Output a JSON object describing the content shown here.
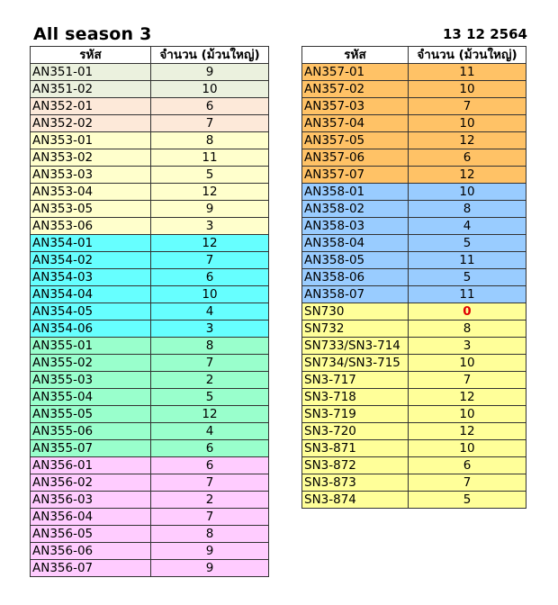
{
  "title": "All season 3",
  "date": "13 12 2564",
  "headers": {
    "code": "รหัส",
    "qty": "จำนวน (ม้วนใหญ่)"
  },
  "colors": {
    "an351": "#ebf1de",
    "an352": "#fde9d9",
    "an353": "#ffffcc",
    "an354": "#66ffff",
    "an355": "#99ffcc",
    "an356": "#ffccff",
    "an357": "#ffc266",
    "an358": "#99ccff",
    "sn": "#ffff99",
    "zero": "#e00000"
  },
  "left_table": [
    {
      "code": "AN351-01",
      "qty": "9",
      "color": "#ebf1de"
    },
    {
      "code": "AN351-02",
      "qty": "10",
      "color": "#ebf1de"
    },
    {
      "code": "AN352-01",
      "qty": "6",
      "color": "#fde9d9"
    },
    {
      "code": "AN352-02",
      "qty": "7",
      "color": "#fde9d9"
    },
    {
      "code": "AN353-01",
      "qty": "8",
      "color": "#ffffcc"
    },
    {
      "code": "AN353-02",
      "qty": "11",
      "color": "#ffffcc"
    },
    {
      "code": "AN353-03",
      "qty": "5",
      "color": "#ffffcc"
    },
    {
      "code": "AN353-04",
      "qty": "12",
      "color": "#ffffcc"
    },
    {
      "code": "AN353-05",
      "qty": "9",
      "color": "#ffffcc"
    },
    {
      "code": "AN353-06",
      "qty": "3",
      "color": "#ffffcc"
    },
    {
      "code": "AN354-01",
      "qty": "12",
      "color": "#66ffff"
    },
    {
      "code": "AN354-02",
      "qty": "7",
      "color": "#66ffff"
    },
    {
      "code": "AN354-03",
      "qty": "6",
      "color": "#66ffff"
    },
    {
      "code": "AN354-04",
      "qty": "10",
      "color": "#66ffff"
    },
    {
      "code": "AN354-05",
      "qty": "4",
      "color": "#66ffff"
    },
    {
      "code": "AN354-06",
      "qty": "3",
      "color": "#66ffff"
    },
    {
      "code": "AN355-01",
      "qty": "8",
      "color": "#99ffcc"
    },
    {
      "code": "AN355-02",
      "qty": "7",
      "color": "#99ffcc"
    },
    {
      "code": "AN355-03",
      "qty": "2",
      "color": "#99ffcc"
    },
    {
      "code": "AN355-04",
      "qty": "5",
      "color": "#99ffcc"
    },
    {
      "code": "AN355-05",
      "qty": "12",
      "color": "#99ffcc"
    },
    {
      "code": "AN355-06",
      "qty": "4",
      "color": "#99ffcc"
    },
    {
      "code": "AN355-07",
      "qty": "6",
      "color": "#99ffcc"
    },
    {
      "code": "AN356-01",
      "qty": "6",
      "color": "#ffccff"
    },
    {
      "code": "AN356-02",
      "qty": "7",
      "color": "#ffccff"
    },
    {
      "code": "AN356-03",
      "qty": "2",
      "color": "#ffccff"
    },
    {
      "code": "AN356-04",
      "qty": "7",
      "color": "#ffccff"
    },
    {
      "code": "AN356-05",
      "qty": "8",
      "color": "#ffccff"
    },
    {
      "code": "AN356-06",
      "qty": "9",
      "color": "#ffccff"
    },
    {
      "code": "AN356-07",
      "qty": "9",
      "color": "#ffccff"
    }
  ],
  "right_table": [
    {
      "code": "AN357-01",
      "qty": "11",
      "color": "#ffc266"
    },
    {
      "code": "AN357-02",
      "qty": "10",
      "color": "#ffc266"
    },
    {
      "code": "AN357-03",
      "qty": "7",
      "color": "#ffc266"
    },
    {
      "code": "AN357-04",
      "qty": "10",
      "color": "#ffc266"
    },
    {
      "code": "AN357-05",
      "qty": "12",
      "color": "#ffc266"
    },
    {
      "code": "AN357-06",
      "qty": "6",
      "color": "#ffc266"
    },
    {
      "code": "AN357-07",
      "qty": "12",
      "color": "#ffc266"
    },
    {
      "code": "AN358-01",
      "qty": "10",
      "color": "#99ccff"
    },
    {
      "code": "AN358-02",
      "qty": "8",
      "color": "#99ccff"
    },
    {
      "code": "AN358-03",
      "qty": "4",
      "color": "#99ccff"
    },
    {
      "code": "AN358-04",
      "qty": "5",
      "color": "#99ccff"
    },
    {
      "code": "AN358-05",
      "qty": "11",
      "color": "#99ccff"
    },
    {
      "code": "AN358-06",
      "qty": "5",
      "color": "#99ccff"
    },
    {
      "code": "AN358-07",
      "qty": "11",
      "color": "#99ccff"
    },
    {
      "code": "SN730",
      "qty": "0",
      "color": "#ffff99",
      "highlight": true
    },
    {
      "code": "SN732",
      "qty": "8",
      "color": "#ffff99"
    },
    {
      "code": "SN733/SN3-714",
      "qty": "3",
      "color": "#ffff99"
    },
    {
      "code": "SN734/SN3-715",
      "qty": "10",
      "color": "#ffff99"
    },
    {
      "code": "SN3-717",
      "qty": "7",
      "color": "#ffff99"
    },
    {
      "code": "SN3-718",
      "qty": "12",
      "color": "#ffff99"
    },
    {
      "code": "SN3-719",
      "qty": "10",
      "color": "#ffff99"
    },
    {
      "code": "SN3-720",
      "qty": "12",
      "color": "#ffff99"
    },
    {
      "code": "SN3-871",
      "qty": "10",
      "color": "#ffff99"
    },
    {
      "code": "SN3-872",
      "qty": "6",
      "color": "#ffff99"
    },
    {
      "code": "SN3-873",
      "qty": "7",
      "color": "#ffff99"
    },
    {
      "code": "SN3-874",
      "qty": "5",
      "color": "#ffff99"
    }
  ]
}
